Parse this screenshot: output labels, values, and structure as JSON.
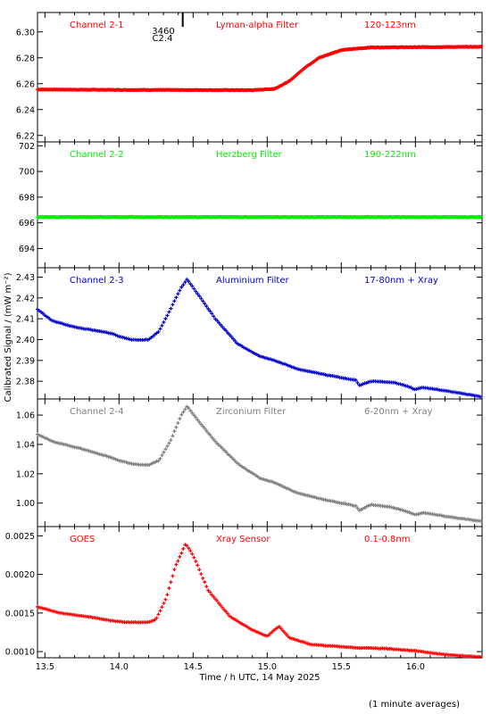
{
  "figure": {
    "ylabel": "Calibrated Signal / (mW m⁻²)",
    "xlabel": "Time / h UTC, 14 May 2025",
    "footnote": "(1 minute averages)",
    "marker": {
      "label_top": "3460",
      "label_bottom": "C2.4",
      "x": 14.43
    }
  },
  "colors": {
    "red": "#ff0000",
    "green": "#00ee00",
    "blue": "#0000cc",
    "gray": "#808080",
    "axis": "#000000"
  },
  "chart_data": [
    {
      "type": "scatter",
      "name_label": "Channel 2-1",
      "filter_label": "Lyman-alpha Filter",
      "range_label": "120-123nm",
      "color_key": "red",
      "xlim": [
        13.45,
        16.45
      ],
      "ylim": [
        6.215,
        6.315
      ],
      "yticks": [
        6.22,
        6.24,
        6.26,
        6.28,
        6.3
      ],
      "ytick_labels": [
        "6.22",
        "6.24",
        "6.26",
        "6.28",
        "6.30"
      ],
      "curve": [
        [
          13.45,
          6.2555
        ],
        [
          14.0,
          6.2552
        ],
        [
          14.5,
          6.2551
        ],
        [
          14.9,
          6.255
        ],
        [
          15.05,
          6.256
        ],
        [
          15.15,
          6.262
        ],
        [
          15.25,
          6.272
        ],
        [
          15.35,
          6.28
        ],
        [
          15.5,
          6.286
        ],
        [
          15.7,
          6.288
        ],
        [
          16.45,
          6.2885
        ]
      ]
    },
    {
      "type": "scatter",
      "name_label": "Channel 2-2",
      "filter_label": "Herzberg Filter",
      "range_label": "190-222nm",
      "color_key": "green",
      "xlim": [
        13.45,
        16.45
      ],
      "ylim": [
        692.5,
        702.3
      ],
      "yticks": [
        694,
        696,
        698,
        700,
        702
      ],
      "ytick_labels": [
        "694",
        "696",
        "698",
        "700",
        "702"
      ],
      "curve": [
        [
          13.45,
          696.45
        ],
        [
          16.45,
          696.45
        ]
      ]
    },
    {
      "type": "scatter",
      "name_label": "Channel 2-3",
      "filter_label": "Aluminium Filter",
      "range_label": "17-80nm + Xray",
      "color_key": "blue",
      "xlim": [
        13.45,
        16.45
      ],
      "ylim": [
        2.3715,
        2.4345
      ],
      "yticks": [
        2.38,
        2.39,
        2.4,
        2.41,
        2.42,
        2.43
      ],
      "ytick_labels": [
        "2.38",
        "2.39",
        "2.40",
        "2.41",
        "2.42",
        "2.43"
      ],
      "curve": [
        [
          13.45,
          2.4145
        ],
        [
          13.55,
          2.409
        ],
        [
          13.7,
          2.406
        ],
        [
          13.95,
          2.403
        ],
        [
          14.0,
          2.4015
        ],
        [
          14.1,
          2.3998
        ],
        [
          14.2,
          2.4
        ],
        [
          14.27,
          2.404
        ],
        [
          14.35,
          2.415
        ],
        [
          14.42,
          2.425
        ],
        [
          14.46,
          2.429
        ],
        [
          14.52,
          2.423
        ],
        [
          14.65,
          2.41
        ],
        [
          14.8,
          2.398
        ],
        [
          14.95,
          2.392
        ],
        [
          15.05,
          2.39
        ],
        [
          15.2,
          2.386
        ],
        [
          15.4,
          2.383
        ],
        [
          15.6,
          2.3805
        ],
        [
          15.62,
          2.378
        ],
        [
          15.7,
          2.38
        ],
        [
          15.85,
          2.3795
        ],
        [
          15.95,
          2.3775
        ],
        [
          16.0,
          2.376
        ],
        [
          16.05,
          2.377
        ],
        [
          16.2,
          2.3755
        ],
        [
          16.45,
          2.3725
        ]
      ]
    },
    {
      "type": "scatter",
      "name_label": "Channel 2-4",
      "filter_label": "Zirconium Filter",
      "range_label": "6-20nm + Xray",
      "color_key": "gray",
      "xlim": [
        13.45,
        16.45
      ],
      "ylim": [
        0.984,
        1.071
      ],
      "yticks": [
        1.0,
        1.02,
        1.04,
        1.06
      ],
      "ytick_labels": [
        "1.00",
        "1.02",
        "1.04",
        "1.06"
      ],
      "curve": [
        [
          13.45,
          1.047
        ],
        [
          13.55,
          1.042
        ],
        [
          13.75,
          1.037
        ],
        [
          13.95,
          1.031
        ],
        [
          14.0,
          1.029
        ],
        [
          14.1,
          1.0265
        ],
        [
          14.2,
          1.026
        ],
        [
          14.27,
          1.029
        ],
        [
          14.35,
          1.043
        ],
        [
          14.42,
          1.06
        ],
        [
          14.46,
          1.066
        ],
        [
          14.52,
          1.058
        ],
        [
          14.65,
          1.042
        ],
        [
          14.8,
          1.027
        ],
        [
          14.95,
          1.017
        ],
        [
          15.05,
          1.014
        ],
        [
          15.2,
          1.007
        ],
        [
          15.4,
          1.002
        ],
        [
          15.6,
          0.998
        ],
        [
          15.62,
          0.995
        ],
        [
          15.7,
          0.999
        ],
        [
          15.85,
          0.997
        ],
        [
          15.95,
          0.994
        ],
        [
          16.0,
          0.992
        ],
        [
          16.05,
          0.9935
        ],
        [
          16.2,
          0.991
        ],
        [
          16.45,
          0.9875
        ]
      ]
    },
    {
      "type": "scatter",
      "name_label": "GOES",
      "filter_label": "Xray Sensor",
      "range_label": "0.1-0.8nm",
      "color_key": "red",
      "xlim": [
        13.45,
        16.45
      ],
      "ylim": [
        0.00092,
        0.00262
      ],
      "yticks": [
        0.001,
        0.0015,
        0.002,
        0.0025
      ],
      "ytick_labels": [
        "0.0010",
        "0.0015",
        "0.0020",
        "0.0025"
      ],
      "curve": [
        [
          13.45,
          0.00158
        ],
        [
          13.6,
          0.0015
        ],
        [
          13.8,
          0.00145
        ],
        [
          13.95,
          0.0014
        ],
        [
          14.05,
          0.00138
        ],
        [
          14.2,
          0.00138
        ],
        [
          14.25,
          0.00142
        ],
        [
          14.32,
          0.0017
        ],
        [
          14.38,
          0.0021
        ],
        [
          14.45,
          0.0024
        ],
        [
          14.5,
          0.00225
        ],
        [
          14.6,
          0.0018
        ],
        [
          14.75,
          0.00145
        ],
        [
          14.9,
          0.00128
        ],
        [
          15.0,
          0.0012
        ],
        [
          15.05,
          0.00128
        ],
        [
          15.08,
          0.00133
        ],
        [
          15.15,
          0.00118
        ],
        [
          15.3,
          0.00109
        ],
        [
          15.6,
          0.00105
        ],
        [
          15.8,
          0.00104
        ],
        [
          16.0,
          0.00101
        ],
        [
          16.2,
          0.00096
        ],
        [
          16.45,
          0.00093
        ]
      ]
    }
  ],
  "xaxis": {
    "ticks": [
      13.5,
      14.0,
      14.5,
      15.0,
      15.5,
      16.0
    ],
    "tick_labels": [
      "13.5",
      "14.0",
      "14.5",
      "15.0",
      "15.5",
      "16.0"
    ]
  }
}
